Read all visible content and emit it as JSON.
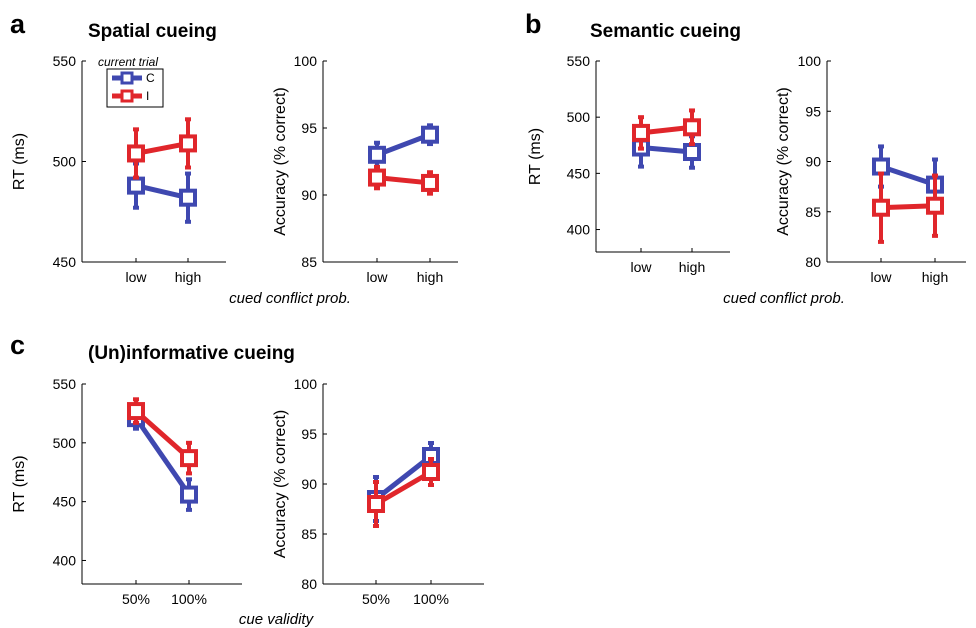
{
  "colors": {
    "C": "#3f48b0",
    "I": "#e0262b"
  },
  "legend": {
    "title": "current trial",
    "entries": [
      "C",
      "I"
    ]
  },
  "panels": [
    {
      "letter": "a",
      "title": "Spatial cueing",
      "xlabel": "cued conflict prob."
    },
    {
      "letter": "b",
      "title": "Semantic cueing",
      "xlabel": "cued conflict prob."
    },
    {
      "letter": "c",
      "title": "(Un)informative cueing",
      "xlabel": "cue validity"
    }
  ],
  "chart_data": [
    {
      "type": "line",
      "panel": "a",
      "ylabel": "RT (ms)",
      "categories": [
        "low",
        "high"
      ],
      "ylim": [
        450,
        550
      ],
      "yticks": [
        450,
        500,
        550
      ],
      "series": [
        {
          "name": "C",
          "values": [
            488,
            482
          ],
          "err": [
            11,
            12
          ]
        },
        {
          "name": "I",
          "values": [
            504,
            509
          ],
          "err": [
            12,
            12
          ]
        }
      ]
    },
    {
      "type": "line",
      "panel": "a",
      "ylabel": "Accuracy (% correct)",
      "categories": [
        "low",
        "high"
      ],
      "ylim": [
        85,
        100
      ],
      "yticks": [
        85,
        90,
        95,
        100
      ],
      "series": [
        {
          "name": "C",
          "values": [
            93.0,
            94.5
          ],
          "err": [
            0.9,
            0.7
          ]
        },
        {
          "name": "I",
          "values": [
            91.3,
            90.9
          ],
          "err": [
            0.8,
            0.8
          ]
        }
      ]
    },
    {
      "type": "line",
      "panel": "b",
      "ylabel": "RT (ms)",
      "categories": [
        "low",
        "high"
      ],
      "ylim": [
        380,
        550
      ],
      "yticks": [
        400,
        450,
        500,
        550
      ],
      "series": [
        {
          "name": "C",
          "values": [
            473,
            469
          ],
          "err": [
            17,
            14
          ]
        },
        {
          "name": "I",
          "values": [
            486,
            491
          ],
          "err": [
            14,
            15
          ]
        }
      ]
    },
    {
      "type": "line",
      "panel": "b",
      "ylabel": "Accuracy (% correct)",
      "categories": [
        "low",
        "high"
      ],
      "ylim": [
        80,
        100
      ],
      "yticks": [
        80,
        85,
        90,
        95,
        100
      ],
      "series": [
        {
          "name": "C",
          "values": [
            89.5,
            87.7
          ],
          "err": [
            2.0,
            2.5
          ]
        },
        {
          "name": "I",
          "values": [
            85.4,
            85.6
          ],
          "err": [
            3.4,
            3.0
          ]
        }
      ]
    },
    {
      "type": "line",
      "panel": "c",
      "ylabel": "RT (ms)",
      "categories": [
        "50%",
        "100%"
      ],
      "ylim": [
        380,
        550
      ],
      "yticks": [
        400,
        450,
        500,
        550
      ],
      "series": [
        {
          "name": "C",
          "values": [
            521,
            456
          ],
          "err": [
            9,
            13
          ]
        },
        {
          "name": "I",
          "values": [
            527,
            487
          ],
          "err": [
            10,
            13
          ]
        }
      ]
    },
    {
      "type": "line",
      "panel": "c",
      "ylabel": "Accuracy (% correct)",
      "categories": [
        "50%",
        "100%"
      ],
      "ylim": [
        80,
        100
      ],
      "yticks": [
        80,
        85,
        90,
        95,
        100
      ],
      "series": [
        {
          "name": "C",
          "values": [
            88.5,
            92.8
          ],
          "err": [
            2.2,
            1.3
          ]
        },
        {
          "name": "I",
          "values": [
            88.0,
            91.2
          ],
          "err": [
            2.2,
            1.3
          ]
        }
      ]
    }
  ]
}
